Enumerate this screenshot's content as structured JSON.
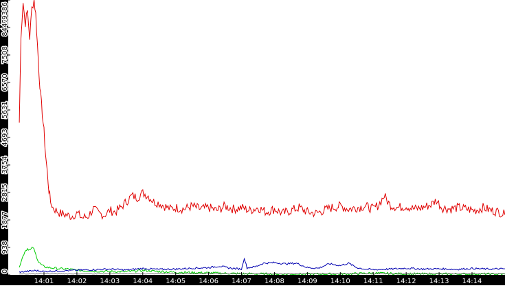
{
  "chart_data": {
    "type": "line",
    "title": "",
    "xlabel": "",
    "ylabel": "",
    "y_ticks": [
      "0",
      "938",
      "1877",
      "2815",
      "3754",
      "4693",
      "5631",
      "6570",
      "7508",
      "8447",
      "9386"
    ],
    "x_ticks": [
      "14:01",
      "14:02",
      "14:03",
      "14:04",
      "14:05",
      "14:06",
      "14:07",
      "14:08",
      "14:09",
      "14:10",
      "14:11",
      "14:12",
      "14:13",
      "14:14"
    ],
    "ylim": [
      0,
      9386
    ],
    "xlim": [
      "14:00:15",
      "14:15:00"
    ],
    "grid": false,
    "legend": "none",
    "axis_colors": {
      "y_bar": "#000000",
      "x_bar": "#000000",
      "tick_label_x": "#ffffff",
      "tick_label_y": "#000000"
    },
    "series": [
      {
        "color": "#e00000",
        "points": [
          [
            "14:00:15",
            5200
          ],
          [
            "14:00:18",
            8200
          ],
          [
            "14:00:22",
            9300
          ],
          [
            "14:00:26",
            8600
          ],
          [
            "14:00:30",
            9000
          ],
          [
            "14:00:34",
            8100
          ],
          [
            "14:00:38",
            9100
          ],
          [
            "14:00:42",
            9400
          ],
          [
            "14:00:45",
            8900
          ],
          [
            "14:00:48",
            7900
          ],
          [
            "14:00:51",
            6900
          ],
          [
            "14:00:54",
            6100
          ],
          [
            "14:00:57",
            5500
          ],
          [
            "14:01:00",
            4900
          ],
          [
            "14:01:03",
            4100
          ],
          [
            "14:01:06",
            3500
          ],
          [
            "14:01:09",
            2900
          ],
          [
            "14:01:12",
            2500
          ],
          [
            "14:01:16",
            2300
          ],
          [
            "14:01:22",
            2200
          ],
          [
            "14:01:30",
            2100
          ],
          [
            "14:01:40",
            2050
          ],
          [
            "14:01:50",
            2000
          ],
          [
            "14:02:00",
            2100
          ],
          [
            "14:02:10",
            1950
          ],
          [
            "14:02:20",
            2000
          ],
          [
            "14:02:30",
            2250
          ],
          [
            "14:02:40",
            2100
          ],
          [
            "14:02:50",
            2050
          ],
          [
            "14:03:00",
            2200
          ],
          [
            "14:03:10",
            2150
          ],
          [
            "14:03:20",
            2300
          ],
          [
            "14:03:30",
            2500
          ],
          [
            "14:03:40",
            2700
          ],
          [
            "14:03:50",
            2650
          ],
          [
            "14:04:00",
            2800
          ],
          [
            "14:04:10",
            2700
          ],
          [
            "14:04:20",
            2500
          ],
          [
            "14:04:30",
            2450
          ],
          [
            "14:04:40",
            2350
          ],
          [
            "14:04:50",
            2250
          ],
          [
            "14:05:00",
            2300
          ],
          [
            "14:05:15",
            2250
          ],
          [
            "14:05:30",
            2350
          ],
          [
            "14:05:45",
            2250
          ],
          [
            "14:06:00",
            2300
          ],
          [
            "14:06:15",
            2200
          ],
          [
            "14:06:30",
            2350
          ],
          [
            "14:06:45",
            2250
          ],
          [
            "14:07:00",
            2300
          ],
          [
            "14:07:15",
            2200
          ],
          [
            "14:07:30",
            2300
          ],
          [
            "14:07:45",
            2150
          ],
          [
            "14:08:00",
            2250
          ],
          [
            "14:08:15",
            2100
          ],
          [
            "14:08:30",
            2200
          ],
          [
            "14:08:45",
            2300
          ],
          [
            "14:09:00",
            2150
          ],
          [
            "14:09:15",
            2100
          ],
          [
            "14:09:30",
            2200
          ],
          [
            "14:09:45",
            2300
          ],
          [
            "14:10:00",
            2350
          ],
          [
            "14:10:15",
            2250
          ],
          [
            "14:10:30",
            2300
          ],
          [
            "14:10:45",
            2350
          ],
          [
            "14:11:00",
            2250
          ],
          [
            "14:11:10",
            2400
          ],
          [
            "14:11:20",
            2700
          ],
          [
            "14:11:30",
            2400
          ],
          [
            "14:11:45",
            2300
          ],
          [
            "14:12:00",
            2350
          ],
          [
            "14:12:15",
            2250
          ],
          [
            "14:12:30",
            2300
          ],
          [
            "14:12:45",
            2400
          ],
          [
            "14:12:55",
            2550
          ],
          [
            "14:13:05",
            2300
          ],
          [
            "14:13:20",
            2250
          ],
          [
            "14:13:35",
            2300
          ],
          [
            "14:13:50",
            2250
          ],
          [
            "14:14:05",
            2200
          ],
          [
            "14:14:20",
            2300
          ],
          [
            "14:14:35",
            2200
          ],
          [
            "14:14:50",
            2150
          ],
          [
            "14:15:00",
            2050
          ]
        ]
      },
      {
        "color": "#00cc00",
        "points": [
          [
            "14:00:15",
            300
          ],
          [
            "14:00:20",
            550
          ],
          [
            "14:00:25",
            800
          ],
          [
            "14:00:30",
            900
          ],
          [
            "14:00:35",
            850
          ],
          [
            "14:00:40",
            950
          ],
          [
            "14:00:45",
            700
          ],
          [
            "14:00:50",
            450
          ],
          [
            "14:00:55",
            350
          ],
          [
            "14:01:00",
            280
          ],
          [
            "14:01:10",
            250
          ],
          [
            "14:01:20",
            230
          ],
          [
            "14:01:30",
            210
          ],
          [
            "14:01:45",
            200
          ],
          [
            "14:02:00",
            160
          ],
          [
            "14:02:30",
            130
          ],
          [
            "14:03:00",
            120
          ],
          [
            "14:03:30",
            110
          ],
          [
            "14:04:00",
            150
          ],
          [
            "14:04:30",
            120
          ],
          [
            "14:05:00",
            90
          ],
          [
            "14:06:00",
            70
          ],
          [
            "14:07:00",
            40
          ],
          [
            "14:08:00",
            30
          ],
          [
            "14:09:00",
            25
          ],
          [
            "14:10:00",
            30
          ],
          [
            "14:11:00",
            60
          ],
          [
            "14:12:00",
            35
          ],
          [
            "14:13:00",
            30
          ],
          [
            "14:14:00",
            30
          ],
          [
            "14:15:00",
            25
          ]
        ]
      },
      {
        "color": "#0000b0",
        "points": [
          [
            "14:00:15",
            100
          ],
          [
            "14:00:45",
            150
          ],
          [
            "14:01:00",
            120
          ],
          [
            "14:01:30",
            140
          ],
          [
            "14:02:00",
            160
          ],
          [
            "14:02:30",
            180
          ],
          [
            "14:03:00",
            200
          ],
          [
            "14:03:30",
            170
          ],
          [
            "14:04:00",
            220
          ],
          [
            "14:04:30",
            190
          ],
          [
            "14:05:00",
            200
          ],
          [
            "14:05:30",
            230
          ],
          [
            "14:06:00",
            250
          ],
          [
            "14:06:20",
            300
          ],
          [
            "14:06:40",
            230
          ],
          [
            "14:07:00",
            200
          ],
          [
            "14:07:05",
            580
          ],
          [
            "14:07:10",
            240
          ],
          [
            "14:07:25",
            280
          ],
          [
            "14:07:40",
            400
          ],
          [
            "14:08:00",
            420
          ],
          [
            "14:08:20",
            380
          ],
          [
            "14:08:40",
            400
          ],
          [
            "14:09:00",
            250
          ],
          [
            "14:09:20",
            230
          ],
          [
            "14:09:40",
            380
          ],
          [
            "14:10:00",
            320
          ],
          [
            "14:10:15",
            400
          ],
          [
            "14:10:30",
            250
          ],
          [
            "14:10:45",
            200
          ],
          [
            "14:11:00",
            180
          ],
          [
            "14:11:30",
            200
          ],
          [
            "14:12:00",
            230
          ],
          [
            "14:12:30",
            200
          ],
          [
            "14:13:00",
            210
          ],
          [
            "14:13:30",
            190
          ],
          [
            "14:14:00",
            220
          ],
          [
            "14:14:30",
            200
          ],
          [
            "14:15:00",
            210
          ]
        ]
      },
      {
        "color": "#666666",
        "points": [
          [
            "14:00:15",
            30
          ],
          [
            "14:01:00",
            40
          ],
          [
            "14:02:00",
            35
          ],
          [
            "14:03:00",
            40
          ],
          [
            "14:04:00",
            38
          ],
          [
            "14:05:00",
            40
          ],
          [
            "14:06:00",
            42
          ],
          [
            "14:07:00",
            40
          ],
          [
            "14:08:00",
            38
          ],
          [
            "14:09:00",
            40
          ],
          [
            "14:10:00",
            42
          ],
          [
            "14:11:00",
            40
          ],
          [
            "14:12:00",
            38
          ],
          [
            "14:13:00",
            40
          ],
          [
            "14:14:00",
            39
          ],
          [
            "14:15:00",
            40
          ]
        ]
      }
    ]
  }
}
